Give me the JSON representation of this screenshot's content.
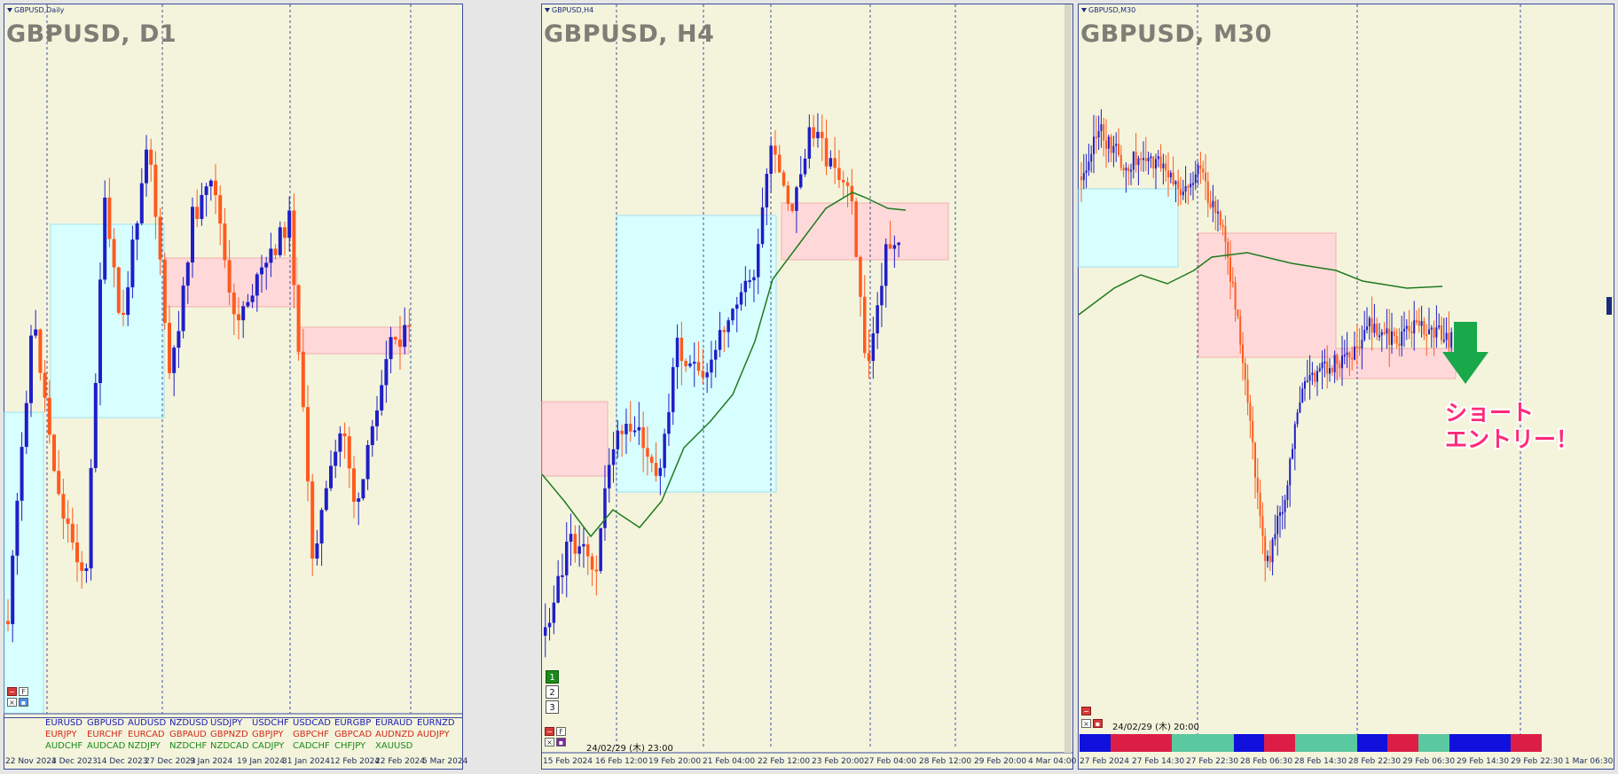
{
  "colors": {
    "background": "#f4f4dc",
    "bull": "#1e1ec8",
    "bear": "#ff5a1e",
    "ma": "#1e7a1e",
    "zone_demand": "#d8ffff",
    "zone_supply": "#ffd9d9",
    "grid": "#3c50aa",
    "arrow": "#19a84a",
    "annotation": "#ff2a78"
  },
  "panels": [
    {
      "id": "d1",
      "chip_label": "GBPUSD,Daily",
      "title": "GBPUSD, D1",
      "x_labels": [
        "22 Nov 2023",
        "4 Dec 2023",
        "14 Dec 2023",
        "27 Dec 2023",
        "9 Jan 2024",
        "19 Jan 2024",
        "31 Jan 2024",
        "12 Feb 2024",
        "22 Feb 2024",
        "5 Mar 2024"
      ],
      "control_buttons": [
        "−",
        "F",
        "×",
        "▪"
      ],
      "pairs": [
        [
          "EURUSD",
          "EURJPY",
          "AUDCHF"
        ],
        [
          "GBPUSD",
          "EURCHF",
          "AUDCAD"
        ],
        [
          "AUDUSD",
          "EURCAD",
          "NZDJPY"
        ],
        [
          "NZDUSD",
          "GBPAUD",
          "NZDCHF"
        ],
        [
          "USDJPY",
          "GBPNZD",
          "NZDCAD"
        ],
        [
          "USDCHF",
          "GBPJPY",
          "CADJPY"
        ],
        [
          "USDCAD",
          "GBPCHF",
          "CADCHF"
        ],
        [
          "EURGBP",
          "GBPCAD",
          "CHFJPY"
        ],
        [
          "EURAUD",
          "AUDNZD",
          "XAUUSD"
        ],
        [
          "EURNZD",
          "AUDJPY",
          ""
        ]
      ],
      "pair_row_colors": [
        "#1a1ab4",
        "#d42a1a",
        "#1a8a1a"
      ]
    },
    {
      "id": "h4",
      "chip_label": "GBPUSD,H4",
      "title": "GBPUSD, H4",
      "x_labels": [
        "15 Feb 2024",
        "16 Feb 12:00",
        "19 Feb 20:00",
        "21 Feb 04:00",
        "22 Feb 12:00",
        "23 Feb 20:00",
        "27 Feb 04:00",
        "28 Feb 12:00",
        "29 Feb 20:00",
        "4 Mar 04:00"
      ],
      "control_buttons": [
        "−",
        "F",
        "×",
        "▪"
      ],
      "num_buttons": [
        "1",
        "2",
        "3"
      ],
      "stamp": "24/02/29 (木) 23:00"
    },
    {
      "id": "m30",
      "chip_label": "GBPUSD,M30",
      "title": "GBPUSD, M30",
      "x_labels": [
        "27 Feb 2024",
        "27 Feb 14:30",
        "27 Feb 22:30",
        "28 Feb 06:30",
        "28 Feb 14:30",
        "28 Feb 22:30",
        "29 Feb 06:30",
        "29 Feb 14:30",
        "29 Feb 22:30",
        "1 Mar 06:30"
      ],
      "control_buttons": [
        "−",
        "▪",
        "×"
      ],
      "stamp": "24/02/29 (木) 20:00",
      "strip_colors": [
        "#1010dc",
        "#dc1e46",
        "#dc1e46",
        "#5ac8a0",
        "#5ac8a0",
        "#1010dc",
        "#dc1e46",
        "#5ac8a0",
        "#5ac8a0",
        "#1010dc",
        "#dc1e46",
        "#5ac8a0",
        "#1010dc",
        "#1010dc",
        "#dc1e46"
      ],
      "annotation": [
        "ショート",
        "エントリー！"
      ]
    }
  ]
}
